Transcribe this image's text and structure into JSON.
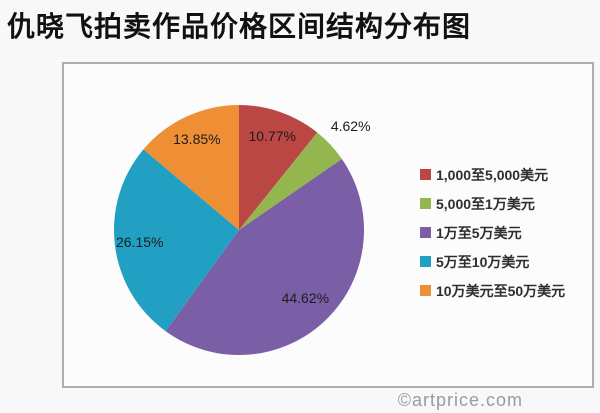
{
  "page": {
    "title": "仇晓飞拍卖作品价格区间结构分布图",
    "watermark": "©artprice.com"
  },
  "chart_data": {
    "type": "pie",
    "title": "仇晓飞拍卖作品价格区间结构分布图",
    "legend_position": "right",
    "start_angle_deg": 0,
    "direction": "clockwise",
    "units": "%",
    "slices": [
      {
        "label": "1,000至5,000美元",
        "value": 10.77,
        "display": "10.77%",
        "color": "#ba4744",
        "label_r": 0.8
      },
      {
        "label": "5,000至1万美元",
        "value": 4.62,
        "display": "4.62%",
        "color": "#94b64f",
        "label_r": 1.22
      },
      {
        "label": "1万至5万美元",
        "value": 44.62,
        "display": "44.62%",
        "color": "#7a5fa6",
        "label_r": 0.76
      },
      {
        "label": "5万至10万美元",
        "value": 26.15,
        "display": "26.15%",
        "color": "#21a0c3",
        "label_r": 0.8
      },
      {
        "label": "10万美元至50万美元",
        "value": 13.85,
        "display": "13.85%",
        "color": "#ee8f35",
        "label_r": 0.8
      }
    ]
  }
}
